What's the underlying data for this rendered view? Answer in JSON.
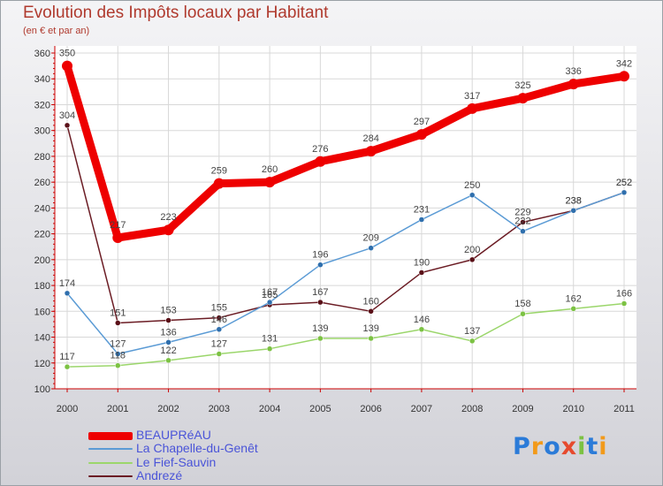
{
  "title": "Evolution des Impôts locaux par Habitant",
  "subtitle": "(en € et par an)",
  "logo": {
    "text": "Proxiti",
    "letters": [
      "P",
      "r",
      "o",
      "x",
      "i",
      "t",
      "i"
    ],
    "colors": [
      "#2b7bd8",
      "#f29a1a",
      "#2b7bd8",
      "#e64a2e",
      "#7cc243",
      "#2b7bd8",
      "#f29a1a"
    ]
  },
  "chart_data": {
    "type": "line",
    "title": "Evolution des Impôts locaux par Habitant",
    "subtitle": "(en € et par an)",
    "xlabel": "",
    "ylabel": "",
    "categories": [
      "2000",
      "2001",
      "2002",
      "2003",
      "2004",
      "2005",
      "2006",
      "2007",
      "2008",
      "2009",
      "2010",
      "2011"
    ],
    "ylim": [
      100,
      360
    ],
    "yticks": [
      100,
      120,
      140,
      160,
      180,
      200,
      220,
      240,
      260,
      280,
      300,
      320,
      340,
      360
    ],
    "grid": true,
    "legend_position": "bottom-left",
    "series": [
      {
        "name": "BEAUPRéAU",
        "color": "#ee0000",
        "marker": "#ee0000",
        "width": 9,
        "values": [
          350,
          217,
          223,
          259,
          260,
          276,
          284,
          297,
          317,
          325,
          336,
          342
        ]
      },
      {
        "name": "La Chapelle-du-Genêt",
        "color": "#5b9bd5",
        "marker": "#2f6fad",
        "width": 1.5,
        "values": [
          174,
          127,
          136,
          146,
          167,
          196,
          209,
          231,
          250,
          222,
          238,
          252
        ]
      },
      {
        "name": "Le Fief-Sauvin",
        "color": "#9bd66b",
        "marker": "#7cc243",
        "width": 1.5,
        "values": [
          117,
          118,
          122,
          127,
          131,
          139,
          139,
          146,
          137,
          158,
          162,
          166
        ]
      },
      {
        "name": "Andrezé",
        "color": "#6b1c24",
        "marker": "#5a1018",
        "width": 1.5,
        "values": [
          304,
          151,
          153,
          155,
          165,
          167,
          160,
          190,
          200,
          229,
          238,
          252
        ]
      }
    ]
  }
}
